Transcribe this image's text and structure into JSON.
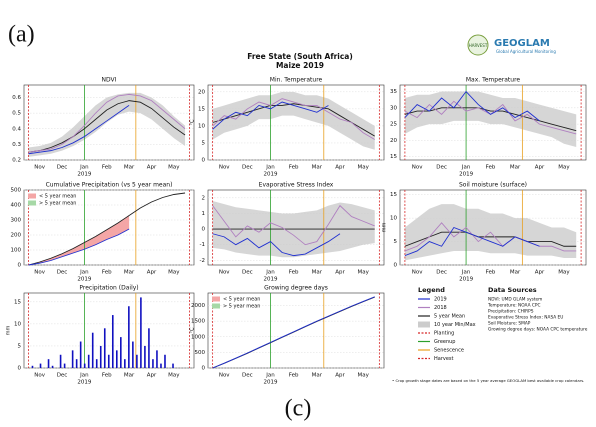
{
  "header": {
    "panel_a": "(a)",
    "panel_c": "(c)",
    "title": "Free State (South Africa)",
    "subtitle": "Maize 2019",
    "logo_left": "HARVEST",
    "logo_right": "GEOGLAM",
    "logo_tag": "Global Agricultural Monitoring"
  },
  "x_axis": {
    "categories": [
      "Nov",
      "Dec",
      "Jan",
      "Feb",
      "Mar",
      "Apr",
      "May"
    ],
    "year": "2019"
  },
  "events": [
    {
      "name": "Planting",
      "color": "#d62728",
      "dash": true,
      "at": -0.5
    },
    {
      "name": "Greenup",
      "color": "#2ca02c",
      "dash": false,
      "at": 2
    },
    {
      "name": "Senescence",
      "color": "#e8a020",
      "dash": false,
      "at": 4.3
    },
    {
      "name": "Harvest",
      "color": "#d62728",
      "dash": true,
      "at": 6.7
    }
  ],
  "chart_data": [
    {
      "type": "line",
      "title": "NDVI",
      "ylim": [
        0.2,
        0.68
      ],
      "yticks": [
        0.2,
        0.3,
        0.4,
        0.5,
        0.6
      ],
      "band": {
        "color": "#cccccc",
        "lower": [
          0.22,
          0.23,
          0.24,
          0.26,
          0.29,
          0.33,
          0.38,
          0.44,
          0.49,
          0.51,
          0.5,
          0.46,
          0.4,
          0.34,
          0.29
        ],
        "upper": [
          0.28,
          0.29,
          0.31,
          0.35,
          0.41,
          0.48,
          0.55,
          0.6,
          0.62,
          0.63,
          0.63,
          0.6,
          0.55,
          0.48,
          0.42
        ]
      },
      "series": [
        {
          "color": "#222222",
          "values": [
            0.25,
            0.26,
            0.28,
            0.31,
            0.35,
            0.4,
            0.46,
            0.52,
            0.56,
            0.58,
            0.57,
            0.53,
            0.47,
            0.41,
            0.36
          ]
        },
        {
          "color": "#b080c0",
          "values": [
            0.25,
            0.26,
            0.27,
            0.3,
            0.35,
            0.42,
            0.5,
            0.57,
            0.61,
            0.62,
            0.61,
            0.58,
            0.52,
            0.46,
            0.4
          ]
        },
        {
          "color": "#2030d0",
          "values": [
            0.24,
            0.25,
            0.26,
            0.28,
            0.31,
            0.35,
            0.4,
            0.45,
            0.5,
            0.55,
            null,
            null,
            null,
            null,
            null
          ]
        }
      ]
    },
    {
      "type": "line",
      "title": "Min. Temperature",
      "ylabel": "°C",
      "ylim": [
        0,
        22
      ],
      "yticks": [
        0,
        5,
        10,
        15,
        20
      ],
      "band": {
        "color": "#cccccc",
        "lower": [
          6,
          8,
          9,
          10,
          12,
          12,
          13,
          13,
          12,
          11,
          10,
          8,
          6,
          4,
          3
        ],
        "upper": [
          15,
          16,
          17,
          18,
          19,
          19,
          20,
          20,
          19,
          19,
          18,
          16,
          14,
          12,
          10
        ]
      },
      "series": [
        {
          "color": "#222222",
          "values": [
            11,
            12,
            13,
            14,
            15,
            16,
            16,
            16.5,
            16,
            15.5,
            15,
            13,
            11,
            9,
            7
          ]
        },
        {
          "color": "#b080c0",
          "values": [
            10,
            13,
            12,
            15,
            17,
            16,
            18,
            17,
            16,
            16,
            14,
            12,
            11,
            8,
            6
          ]
        },
        {
          "color": "#2030d0",
          "values": [
            9,
            12,
            14,
            13,
            16,
            15,
            17,
            16,
            15,
            14,
            16,
            null,
            null,
            null,
            null
          ]
        }
      ]
    },
    {
      "type": "line",
      "title": "Max. Temperature",
      "ylim": [
        14,
        37
      ],
      "yticks": [
        15,
        20,
        25,
        30,
        35
      ],
      "band": {
        "color": "#cccccc",
        "lower": [
          22,
          24,
          25,
          25,
          26,
          26,
          26,
          25,
          25,
          24,
          23,
          22,
          21,
          19,
          18
        ],
        "upper": [
          33,
          34,
          34,
          35,
          35,
          35,
          35,
          34,
          33,
          33,
          32,
          31,
          30,
          29,
          28
        ]
      },
      "series": [
        {
          "color": "#222222",
          "values": [
            28,
            29,
            29,
            30,
            30,
            30,
            30,
            29,
            29,
            28,
            27,
            26,
            25,
            24,
            23
          ]
        },
        {
          "color": "#b080c0",
          "values": [
            29,
            27,
            31,
            28,
            32,
            29,
            30,
            28,
            31,
            26,
            28,
            25,
            24,
            23,
            22
          ]
        },
        {
          "color": "#2030d0",
          "values": [
            27,
            31,
            29,
            33,
            30,
            35,
            31,
            28,
            30,
            27,
            29,
            26,
            null,
            null,
            null
          ]
        }
      ]
    },
    {
      "type": "line",
      "title": "Cumulative Precipitation (vs 5 year mean)",
      "ylim": [
        0,
        500
      ],
      "yticks": [
        0,
        100,
        200,
        300,
        400,
        500
      ],
      "fill": {
        "below": "#f4a6a6",
        "above": "#a6d8a6"
      },
      "legend": [
        {
          "name": "< 5 year mean",
          "color": "#f4a6a6"
        },
        {
          "name": "> 5 year mean",
          "color": "#a6d8a6"
        }
      ],
      "series": [
        {
          "color": "#222222",
          "values": [
            0,
            20,
            45,
            75,
            110,
            150,
            190,
            235,
            280,
            330,
            380,
            420,
            450,
            470,
            480
          ]
        },
        {
          "color": "#2030d0",
          "values": [
            0,
            12,
            30,
            55,
            80,
            105,
            135,
            170,
            200,
            240,
            null,
            null,
            null,
            null,
            null
          ]
        }
      ]
    },
    {
      "type": "line",
      "title": "Evaporative Stress Index",
      "ylim": [
        -2.3,
        2.5
      ],
      "yticks": [
        -2,
        -1,
        0,
        1,
        2
      ],
      "band": {
        "color": "#cccccc",
        "lower": [
          -1.2,
          -1.3,
          -1.5,
          -1.6,
          -1.7,
          -1.7,
          -1.8,
          -1.8,
          -1.7,
          -1.6,
          -1.5,
          -1.4,
          -1.2,
          -1,
          -0.9
        ],
        "upper": [
          1.8,
          1.6,
          1.4,
          1.3,
          1.2,
          1.1,
          1,
          1,
          1.1,
          1.2,
          1.5,
          1.7,
          1.6,
          1.4,
          1.2
        ]
      },
      "series": [
        {
          "color": "#222222",
          "values": [
            0,
            0,
            0,
            0,
            0,
            0,
            0,
            0,
            0,
            0,
            0,
            0,
            0,
            0,
            0
          ]
        },
        {
          "color": "#b080c0",
          "values": [
            1.5,
            0.5,
            -0.5,
            0.2,
            -0.2,
            0.4,
            0.1,
            -0.4,
            -1,
            -0.8,
            0.3,
            1.5,
            0.8,
            0.5,
            0.2
          ]
        },
        {
          "color": "#2030d0",
          "values": [
            -0.3,
            -0.5,
            -1,
            -0.6,
            -1.2,
            -0.8,
            -1.5,
            -1.7,
            -1.6,
            -1.2,
            -0.8,
            -0.3,
            null,
            null,
            null
          ]
        }
      ]
    },
    {
      "type": "line",
      "title": "Soil moisture (surface)",
      "ylabel": "mm",
      "ylim": [
        0,
        16
      ],
      "yticks": [
        0,
        5,
        10,
        15
      ],
      "band": {
        "color": "#cccccc",
        "lower": [
          1,
          1.5,
          2,
          2.5,
          3,
          3,
          3,
          2.5,
          2.5,
          2.5,
          2,
          2,
          2,
          1.5,
          1.5
        ],
        "upper": [
          8,
          10,
          12,
          13,
          13,
          12,
          12,
          11,
          11,
          10,
          10,
          9,
          8,
          8,
          7
        ]
      },
      "series": [
        {
          "color": "#222222",
          "values": [
            4,
            5,
            6,
            7,
            7,
            7,
            6,
            6,
            6,
            6,
            5,
            5,
            5,
            4,
            4
          ]
        },
        {
          "color": "#b080c0",
          "values": [
            3,
            4,
            6,
            9,
            6,
            8,
            5,
            7,
            4,
            6,
            5,
            4,
            4,
            3,
            3
          ]
        },
        {
          "color": "#2030d0",
          "values": [
            2,
            3,
            5,
            4,
            8,
            7,
            6,
            5,
            4,
            6,
            5,
            4,
            null,
            null,
            null
          ]
        }
      ]
    },
    {
      "type": "bar",
      "title": "Precipitation (Daily)",
      "ylabel": "mm",
      "ylim": [
        0,
        17
      ],
      "yticks": [
        0,
        5,
        10,
        15
      ],
      "color": "#1010c0",
      "values": [
        0,
        0.5,
        0,
        1,
        0,
        2,
        0.5,
        0,
        3,
        1,
        0,
        4,
        2,
        6,
        1,
        3,
        8,
        2,
        5,
        9,
        3,
        12,
        4,
        7,
        2,
        14,
        6,
        3,
        16,
        5,
        9,
        2,
        4,
        1,
        3,
        0,
        1,
        0,
        0,
        0
      ]
    },
    {
      "type": "line",
      "title": "Growing degree days",
      "ylabel": "°C",
      "ylim": [
        0,
        2400
      ],
      "yticks": [
        0,
        500,
        1000,
        1500,
        2000
      ],
      "legend": [
        {
          "name": "< 5 year mean",
          "color": "#f4a6a6"
        },
        {
          "name": "> 5 year mean",
          "color": "#a6d8a6"
        }
      ],
      "series": [
        {
          "color": "#222222",
          "values": [
            0,
            150,
            310,
            470,
            640,
            810,
            980,
            1150,
            1320,
            1490,
            1650,
            1810,
            1970,
            2120,
            2270
          ]
        },
        {
          "color": "#2030d0",
          "values": [
            0,
            155,
            315,
            480,
            650,
            820,
            990,
            1160,
            1330,
            1500,
            1660,
            1820,
            1980,
            2130,
            2280
          ]
        }
      ]
    }
  ],
  "legend": {
    "title": "Legend",
    "items": [
      {
        "name": "2019",
        "color": "#2030d0",
        "style": "line"
      },
      {
        "name": "2018",
        "color": "#b080c0",
        "style": "line"
      },
      {
        "name": "5 year Mean",
        "color": "#222222",
        "style": "line"
      },
      {
        "name": "10 year Min/Max",
        "color": "#cccccc",
        "style": "box"
      }
    ]
  },
  "sources": {
    "title": "Data Sources",
    "lines": [
      "NDVI: UMD GLAM system",
      "Temperature: NOAA CPC",
      "Precipitation: CHIRPS",
      "Evaporative Stress Index: NASA EU",
      "Soil Moisture: SMAP",
      "Growing degree days: NOAA CPC temperature"
    ]
  },
  "footnote": "• Crop growth stage dates are based on the 5 year average GEOGLAM best available crop calendars."
}
